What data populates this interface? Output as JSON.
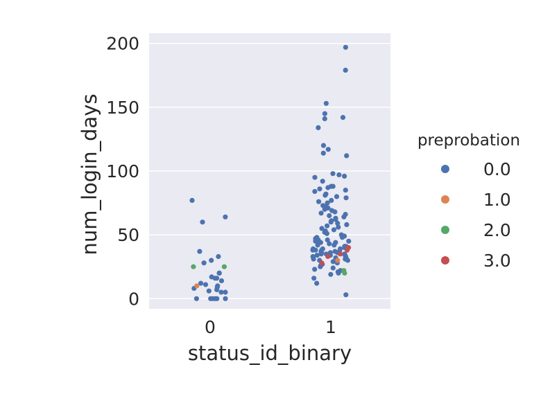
{
  "chart_data": {
    "type": "scatter",
    "style": "strip",
    "xlabel": "status_id_binary",
    "ylabel": "num_login_days",
    "categories": [
      "0",
      "1"
    ],
    "ylim": [
      -8,
      208
    ],
    "yticks": [
      0,
      50,
      100,
      150,
      200
    ],
    "grid": true,
    "legend": {
      "title": "preprobation",
      "placement": "right"
    },
    "series": [
      {
        "name": "0.0",
        "color": "#4c72b0",
        "points": [
          {
            "x": 0,
            "y": 77
          },
          {
            "x": 0,
            "y": 64
          },
          {
            "x": 0,
            "y": 60
          },
          {
            "x": 0,
            "y": 37
          },
          {
            "x": 0,
            "y": 33
          },
          {
            "x": 0,
            "y": 30
          },
          {
            "x": 0,
            "y": 28
          },
          {
            "x": 0,
            "y": 20
          },
          {
            "x": 0,
            "y": 20
          },
          {
            "x": 0,
            "y": 17
          },
          {
            "x": 0,
            "y": 16
          },
          {
            "x": 0,
            "y": 16
          },
          {
            "x": 0,
            "y": 14
          },
          {
            "x": 0,
            "y": 12
          },
          {
            "x": 0,
            "y": 11
          },
          {
            "x": 0,
            "y": 10
          },
          {
            "x": 0,
            "y": 9
          },
          {
            "x": 0,
            "y": 8
          },
          {
            "x": 0,
            "y": 7
          },
          {
            "x": 0,
            "y": 6
          },
          {
            "x": 0,
            "y": 5
          },
          {
            "x": 0,
            "y": 5
          },
          {
            "x": 0,
            "y": 0
          },
          {
            "x": 0,
            "y": 0
          },
          {
            "x": 0,
            "y": 0
          },
          {
            "x": 0,
            "y": 0
          },
          {
            "x": 0,
            "y": 0
          },
          {
            "x": 0,
            "y": 0
          },
          {
            "x": 1,
            "y": 197
          },
          {
            "x": 1,
            "y": 179
          },
          {
            "x": 1,
            "y": 153
          },
          {
            "x": 1,
            "y": 145
          },
          {
            "x": 1,
            "y": 142
          },
          {
            "x": 1,
            "y": 141
          },
          {
            "x": 1,
            "y": 134
          },
          {
            "x": 1,
            "y": 120
          },
          {
            "x": 1,
            "y": 117
          },
          {
            "x": 1,
            "y": 114
          },
          {
            "x": 1,
            "y": 112
          },
          {
            "x": 1,
            "y": 98
          },
          {
            "x": 1,
            "y": 97
          },
          {
            "x": 1,
            "y": 96
          },
          {
            "x": 1,
            "y": 95
          },
          {
            "x": 1,
            "y": 92
          },
          {
            "x": 1,
            "y": 88
          },
          {
            "x": 1,
            "y": 88
          },
          {
            "x": 1,
            "y": 87
          },
          {
            "x": 1,
            "y": 86
          },
          {
            "x": 1,
            "y": 85
          },
          {
            "x": 1,
            "y": 84
          },
          {
            "x": 1,
            "y": 82
          },
          {
            "x": 1,
            "y": 81
          },
          {
            "x": 1,
            "y": 80
          },
          {
            "x": 1,
            "y": 79
          },
          {
            "x": 1,
            "y": 77
          },
          {
            "x": 1,
            "y": 76
          },
          {
            "x": 1,
            "y": 75
          },
          {
            "x": 1,
            "y": 73
          },
          {
            "x": 1,
            "y": 72
          },
          {
            "x": 1,
            "y": 71
          },
          {
            "x": 1,
            "y": 70
          },
          {
            "x": 1,
            "y": 69
          },
          {
            "x": 1,
            "y": 68
          },
          {
            "x": 1,
            "y": 67
          },
          {
            "x": 1,
            "y": 66
          },
          {
            "x": 1,
            "y": 65
          },
          {
            "x": 1,
            "y": 64
          },
          {
            "x": 1,
            "y": 63
          },
          {
            "x": 1,
            "y": 62
          },
          {
            "x": 1,
            "y": 61
          },
          {
            "x": 1,
            "y": 60
          },
          {
            "x": 1,
            "y": 59
          },
          {
            "x": 1,
            "y": 58
          },
          {
            "x": 1,
            "y": 57
          },
          {
            "x": 1,
            "y": 56
          },
          {
            "x": 1,
            "y": 55
          },
          {
            "x": 1,
            "y": 54
          },
          {
            "x": 1,
            "y": 53
          },
          {
            "x": 1,
            "y": 52
          },
          {
            "x": 1,
            "y": 51
          },
          {
            "x": 1,
            "y": 50
          },
          {
            "x": 1,
            "y": 49
          },
          {
            "x": 1,
            "y": 48
          },
          {
            "x": 1,
            "y": 48
          },
          {
            "x": 1,
            "y": 47
          },
          {
            "x": 1,
            "y": 46
          },
          {
            "x": 1,
            "y": 46
          },
          {
            "x": 1,
            "y": 45
          },
          {
            "x": 1,
            "y": 45
          },
          {
            "x": 1,
            "y": 44
          },
          {
            "x": 1,
            "y": 44
          },
          {
            "x": 1,
            "y": 43
          },
          {
            "x": 1,
            "y": 43
          },
          {
            "x": 1,
            "y": 42
          },
          {
            "x": 1,
            "y": 42
          },
          {
            "x": 1,
            "y": 41
          },
          {
            "x": 1,
            "y": 41
          },
          {
            "x": 1,
            "y": 40
          },
          {
            "x": 1,
            "y": 40
          },
          {
            "x": 1,
            "y": 40
          },
          {
            "x": 1,
            "y": 39
          },
          {
            "x": 1,
            "y": 39
          },
          {
            "x": 1,
            "y": 39
          },
          {
            "x": 1,
            "y": 38
          },
          {
            "x": 1,
            "y": 38
          },
          {
            "x": 1,
            "y": 38
          },
          {
            "x": 1,
            "y": 37
          },
          {
            "x": 1,
            "y": 37
          },
          {
            "x": 1,
            "y": 37
          },
          {
            "x": 1,
            "y": 36
          },
          {
            "x": 1,
            "y": 36
          },
          {
            "x": 1,
            "y": 36
          },
          {
            "x": 1,
            "y": 35
          },
          {
            "x": 1,
            "y": 35
          },
          {
            "x": 1,
            "y": 35
          },
          {
            "x": 1,
            "y": 34
          },
          {
            "x": 1,
            "y": 34
          },
          {
            "x": 1,
            "y": 34
          },
          {
            "x": 1,
            "y": 33
          },
          {
            "x": 1,
            "y": 33
          },
          {
            "x": 1,
            "y": 32
          },
          {
            "x": 1,
            "y": 32
          },
          {
            "x": 1,
            "y": 31
          },
          {
            "x": 1,
            "y": 31
          },
          {
            "x": 1,
            "y": 30
          },
          {
            "x": 1,
            "y": 30
          },
          {
            "x": 1,
            "y": 29
          },
          {
            "x": 1,
            "y": 28
          },
          {
            "x": 1,
            "y": 27
          },
          {
            "x": 1,
            "y": 26
          },
          {
            "x": 1,
            "y": 25
          },
          {
            "x": 1,
            "y": 24
          },
          {
            "x": 1,
            "y": 23
          },
          {
            "x": 1,
            "y": 22
          },
          {
            "x": 1,
            "y": 21
          },
          {
            "x": 1,
            "y": 20
          },
          {
            "x": 1,
            "y": 19
          },
          {
            "x": 1,
            "y": 16
          },
          {
            "x": 1,
            "y": 12
          },
          {
            "x": 1,
            "y": 3
          }
        ]
      },
      {
        "name": "1.0",
        "color": "#dd8452",
        "points": [
          {
            "x": 0,
            "y": 10
          },
          {
            "x": 1,
            "y": 30
          }
        ]
      },
      {
        "name": "2.0",
        "color": "#55a868",
        "points": [
          {
            "x": 0,
            "y": 25
          },
          {
            "x": 0,
            "y": 25
          },
          {
            "x": 1,
            "y": 20
          },
          {
            "x": 1,
            "y": 22
          }
        ]
      },
      {
        "name": "3.0",
        "color": "#c44e52",
        "points": [
          {
            "x": 1,
            "y": 40
          },
          {
            "x": 1,
            "y": 38
          },
          {
            "x": 1,
            "y": 35
          },
          {
            "x": 1,
            "y": 33
          },
          {
            "x": 1,
            "y": 28
          }
        ]
      }
    ]
  }
}
